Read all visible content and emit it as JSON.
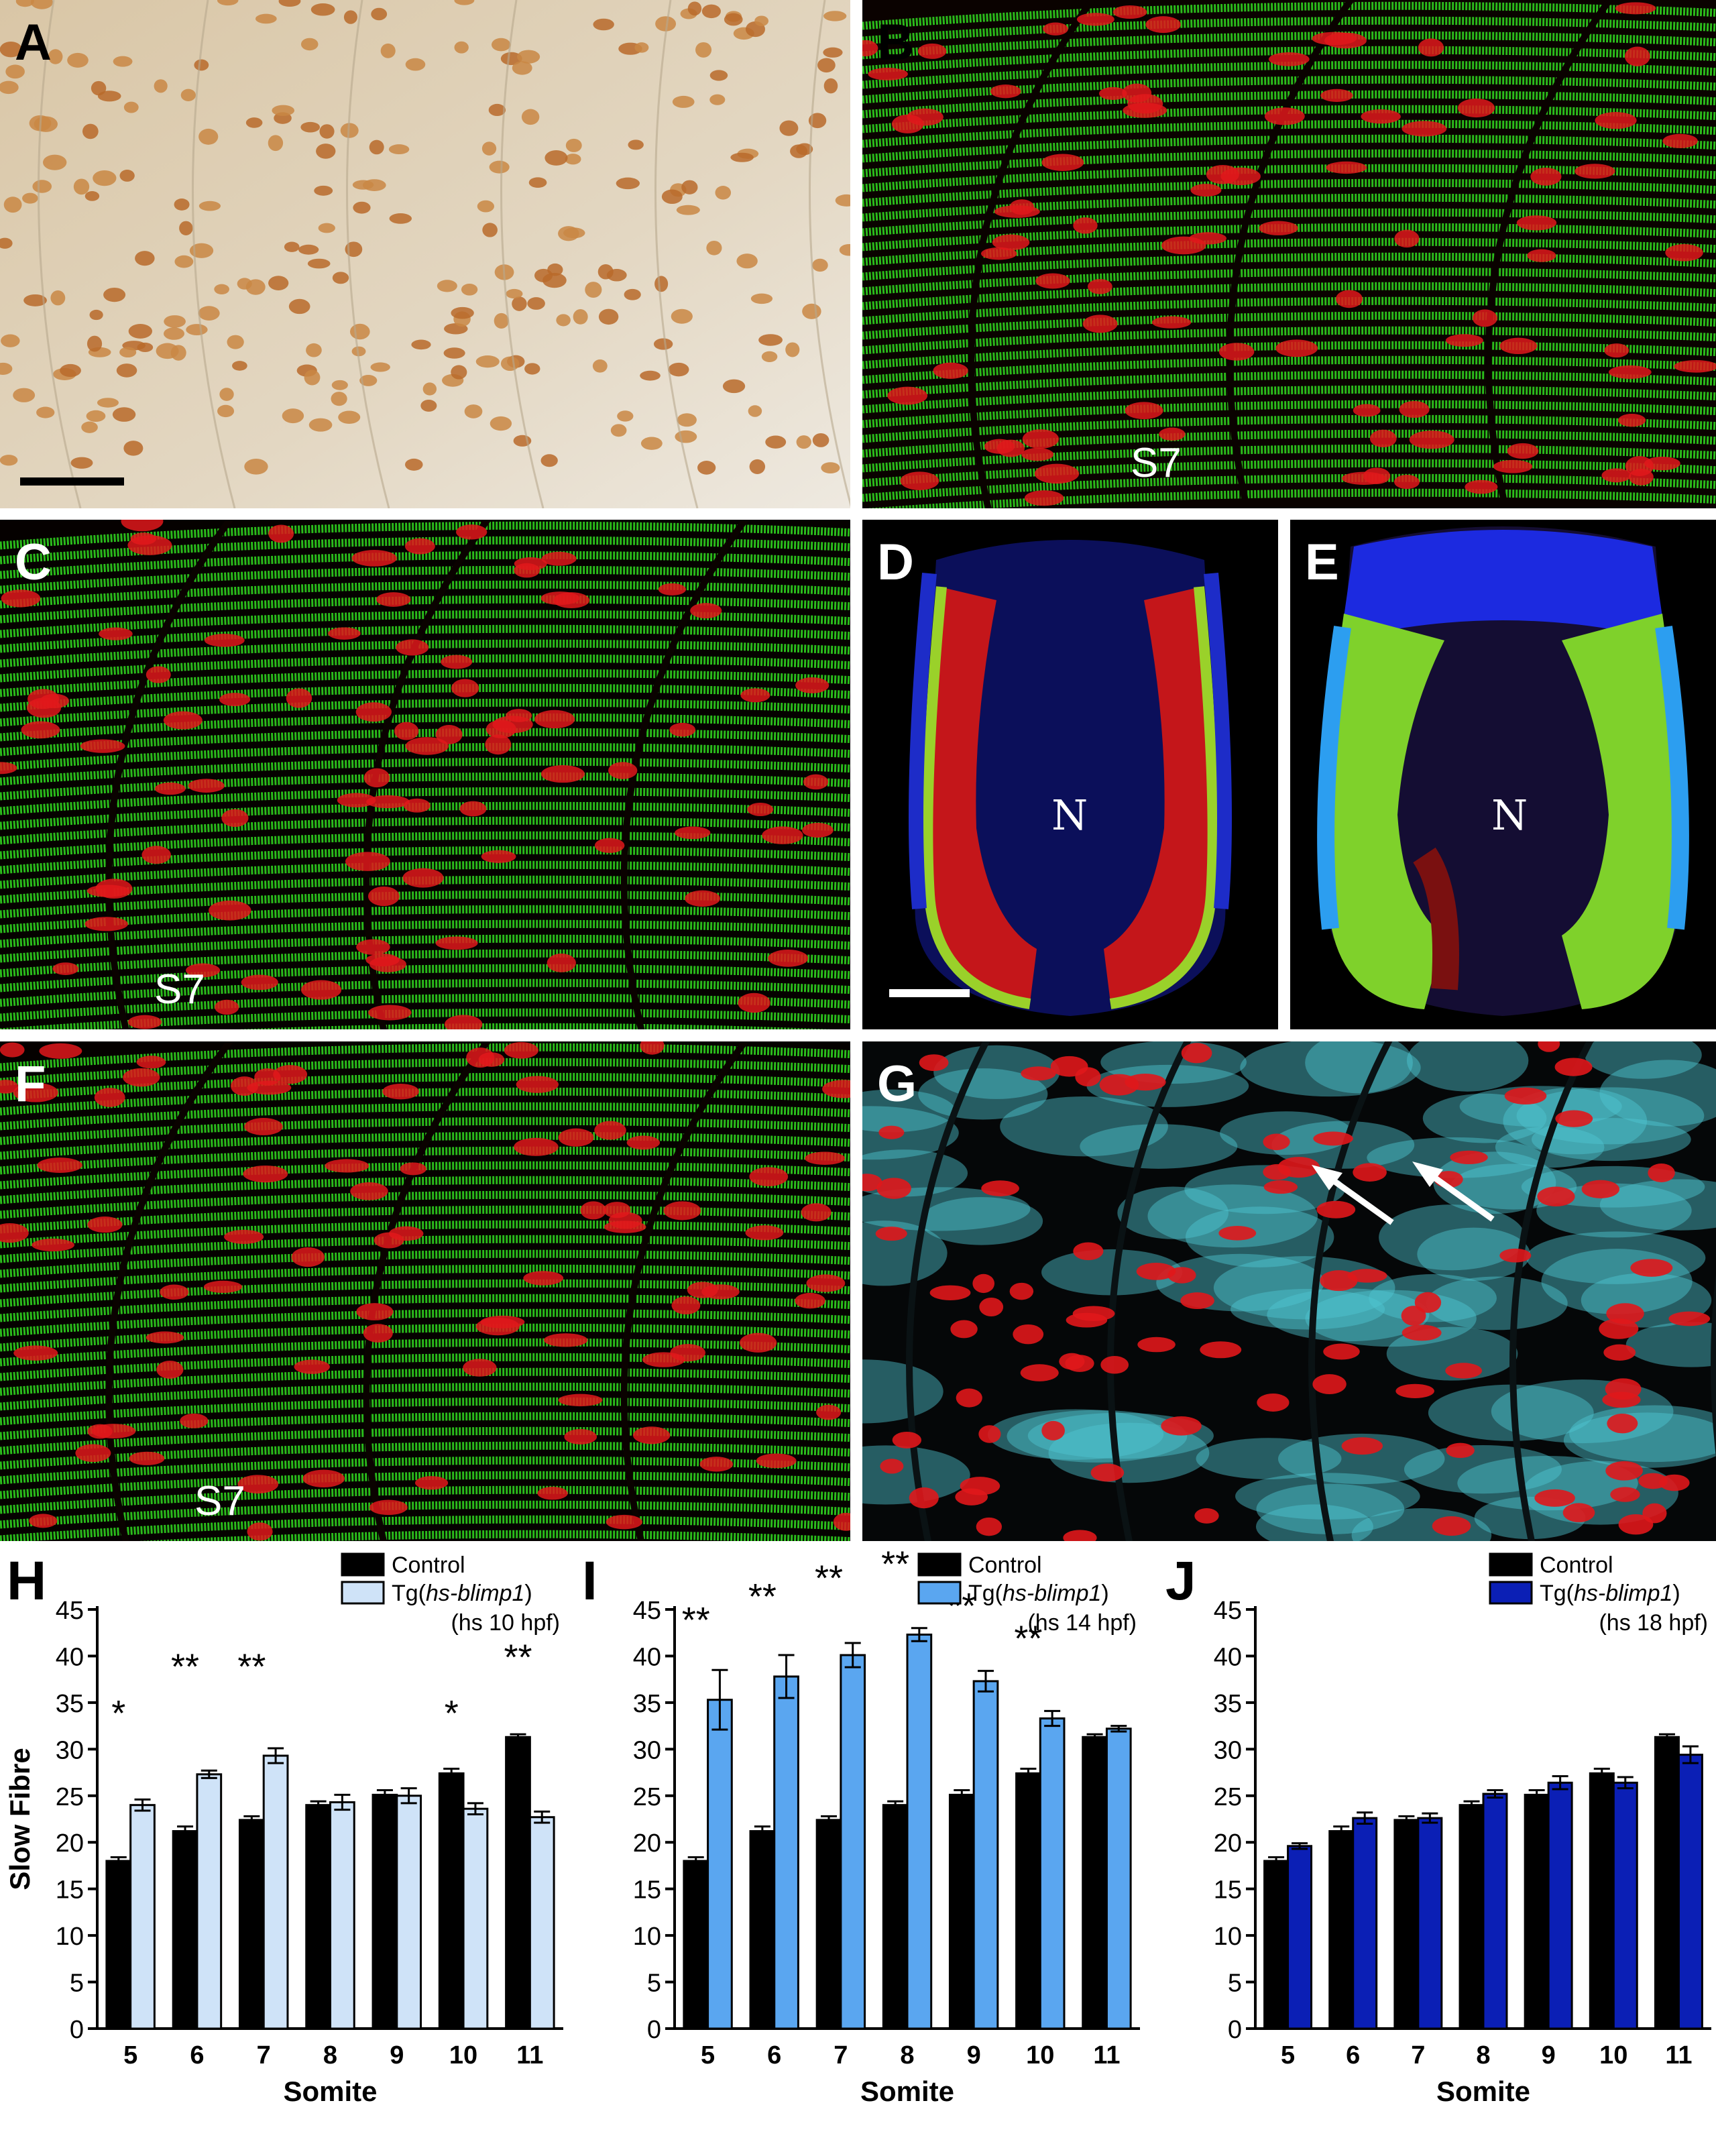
{
  "figure": {
    "panels": {
      "A": {
        "label": "A"
      },
      "B": {
        "label": "B",
        "somite": "S7"
      },
      "C": {
        "label": "C",
        "somite": "S7"
      },
      "D": {
        "label": "D",
        "structure": "N"
      },
      "E": {
        "label": "E",
        "structure": "N"
      },
      "F": {
        "label": "F",
        "somite": "S7"
      },
      "G": {
        "label": "G"
      }
    }
  },
  "colors": {
    "control": "#000000",
    "tg10": "#cfe3f8",
    "tg14": "#5aa6f0",
    "tg18": "#0b1fb5",
    "green": "#2fcf1e",
    "red": "#e0171b",
    "cyan": "#4fc8d2"
  },
  "chart_data": [
    {
      "panel": "H",
      "type": "bar",
      "xlabel": "Somite",
      "ylabel": "Slow Fibre",
      "ylim": [
        0,
        45
      ],
      "yticks": [
        "0",
        "5",
        "10",
        "15",
        "20",
        "25",
        "30",
        "35",
        "40",
        "45"
      ],
      "categories": [
        "5",
        "6",
        "7",
        "8",
        "9",
        "10",
        "11"
      ],
      "legend_placement": "top-right",
      "series": [
        {
          "name": "Control",
          "color_key": "control",
          "values": [
            18.0,
            21.2,
            22.4,
            24.0,
            25.1,
            27.4,
            31.3
          ],
          "errors": [
            0.4,
            0.5,
            0.4,
            0.4,
            0.5,
            0.5,
            0.3
          ]
        },
        {
          "name": "Tg(hs-blimp1)",
          "name_parts": [
            "Tg(",
            "hs-blimp1",
            ")"
          ],
          "note": "(hs 10 hpf)",
          "color_key": "tg10",
          "values": [
            24.0,
            27.3,
            29.3,
            24.3,
            25.0,
            23.6,
            22.7
          ],
          "errors": [
            0.6,
            0.4,
            0.8,
            0.8,
            0.8,
            0.6,
            0.6
          ]
        }
      ],
      "significance": [
        "*",
        "**",
        "**",
        "",
        "",
        "*",
        "**"
      ],
      "sig_y": [
        34,
        39,
        39,
        0,
        0,
        34,
        40
      ]
    },
    {
      "panel": "I",
      "type": "bar",
      "xlabel": "Somite",
      "ylabel": "",
      "ylim": [
        0,
        45
      ],
      "yticks": [
        "0",
        "5",
        "10",
        "15",
        "20",
        "25",
        "30",
        "35",
        "40",
        "45"
      ],
      "categories": [
        "5",
        "6",
        "7",
        "8",
        "9",
        "10",
        "11"
      ],
      "legend_placement": "top-right",
      "series": [
        {
          "name": "Control",
          "color_key": "control",
          "values": [
            18.0,
            21.2,
            22.4,
            24.0,
            25.1,
            27.4,
            31.3
          ],
          "errors": [
            0.4,
            0.5,
            0.4,
            0.4,
            0.5,
            0.5,
            0.3
          ]
        },
        {
          "name": "Tg(hs-blimp1)",
          "name_parts": [
            "Tg(",
            "hs-blimp1",
            ")"
          ],
          "note": "(hs 14 hpf)",
          "color_key": "tg14",
          "values": [
            35.3,
            37.8,
            40.1,
            42.3,
            37.3,
            33.3,
            32.2
          ],
          "errors": [
            3.2,
            2.3,
            1.3,
            0.7,
            1.1,
            0.8,
            0.3
          ]
        }
      ],
      "significance": [
        "**",
        "**",
        "**",
        "**",
        "**",
        "**",
        ""
      ],
      "sig_y": [
        44,
        46.5,
        48.5,
        50,
        45.5,
        42,
        0
      ]
    },
    {
      "panel": "J",
      "type": "bar",
      "xlabel": "Somite",
      "ylabel": "",
      "ylim": [
        0,
        45
      ],
      "yticks": [
        "0",
        "5",
        "10",
        "15",
        "20",
        "25",
        "30",
        "35",
        "40",
        "45"
      ],
      "categories": [
        "5",
        "6",
        "7",
        "8",
        "9",
        "10",
        "11"
      ],
      "legend_placement": "top-right",
      "series": [
        {
          "name": "Control",
          "color_key": "control",
          "values": [
            18.0,
            21.2,
            22.4,
            24.0,
            25.1,
            27.4,
            31.3
          ],
          "errors": [
            0.4,
            0.5,
            0.4,
            0.4,
            0.5,
            0.5,
            0.3
          ]
        },
        {
          "name": "Tg(hs-blimp1)",
          "name_parts": [
            "Tg(",
            "hs-blimp1",
            ")"
          ],
          "note": "(hs 18 hpf)",
          "color_key": "tg18",
          "values": [
            19.6,
            22.6,
            22.6,
            25.2,
            26.4,
            26.4,
            29.4
          ],
          "errors": [
            0.3,
            0.6,
            0.5,
            0.4,
            0.7,
            0.6,
            0.9
          ]
        }
      ],
      "significance": [
        "",
        "",
        "",
        "",
        "",
        "",
        ""
      ],
      "sig_y": [
        0,
        0,
        0,
        0,
        0,
        0,
        0
      ]
    }
  ]
}
